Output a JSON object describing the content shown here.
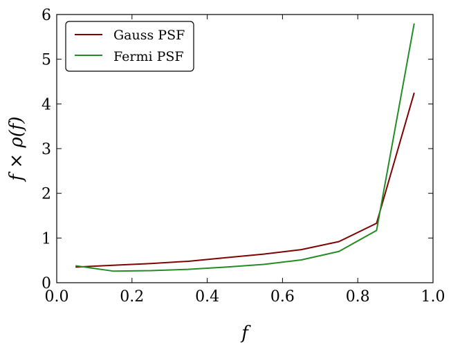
{
  "chart_data": {
    "type": "line",
    "xlabel": "f",
    "ylabel": "f × ρ(f)",
    "xlim": [
      0.0,
      1.0
    ],
    "ylim": [
      0,
      6
    ],
    "x_ticks": [
      "0.0",
      "0.2",
      "0.4",
      "0.6",
      "0.8",
      "1.0"
    ],
    "y_ticks": [
      "0",
      "1",
      "2",
      "3",
      "4",
      "5",
      "6"
    ],
    "x": [
      0.05,
      0.15,
      0.25,
      0.35,
      0.45,
      0.55,
      0.65,
      0.75,
      0.85,
      0.95
    ],
    "series": [
      {
        "name": "Gauss PSF",
        "color": "#800000",
        "values": [
          0.35,
          0.39,
          0.43,
          0.48,
          0.56,
          0.64,
          0.74,
          0.92,
          1.33,
          4.25
        ]
      },
      {
        "name": "Fermi PSF",
        "color": "#228b22",
        "values": [
          0.38,
          0.26,
          0.27,
          0.3,
          0.35,
          0.41,
          0.51,
          0.7,
          1.17,
          5.8
        ]
      }
    ],
    "legend_position": "top-left",
    "grid": false
  }
}
